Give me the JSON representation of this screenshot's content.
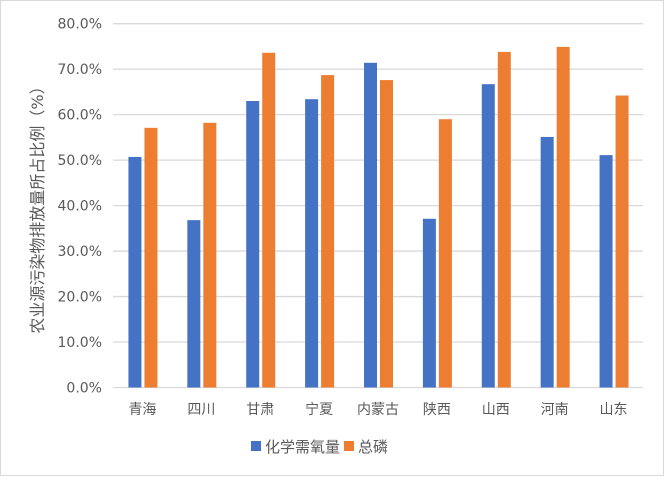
{
  "chart_data": {
    "type": "bar",
    "title": "",
    "xlabel": "",
    "ylabel": "农业源污染物排放量所占比例（%）",
    "ylim": [
      0,
      80
    ],
    "yticks": [
      "0.0%",
      "10.0%",
      "20.0%",
      "30.0%",
      "40.0%",
      "50.0%",
      "60.0%",
      "70.0%",
      "80.0%"
    ],
    "grid": true,
    "legend_position": "bottom",
    "categories": [
      "青海",
      "四川",
      "甘肃",
      "宁夏",
      "内蒙古",
      "陕西",
      "山西",
      "河南",
      "山东"
    ],
    "series": [
      {
        "name": "化学需氧量",
        "color": "#4472c4",
        "values": [
          50.7,
          36.8,
          63.0,
          63.4,
          71.4,
          37.1,
          66.7,
          55.1,
          51.1
        ]
      },
      {
        "name": "总磷",
        "color": "#ed7d31",
        "values": [
          57.1,
          58.2,
          73.6,
          68.7,
          67.6,
          59.0,
          73.8,
          74.9,
          64.2
        ]
      }
    ]
  }
}
